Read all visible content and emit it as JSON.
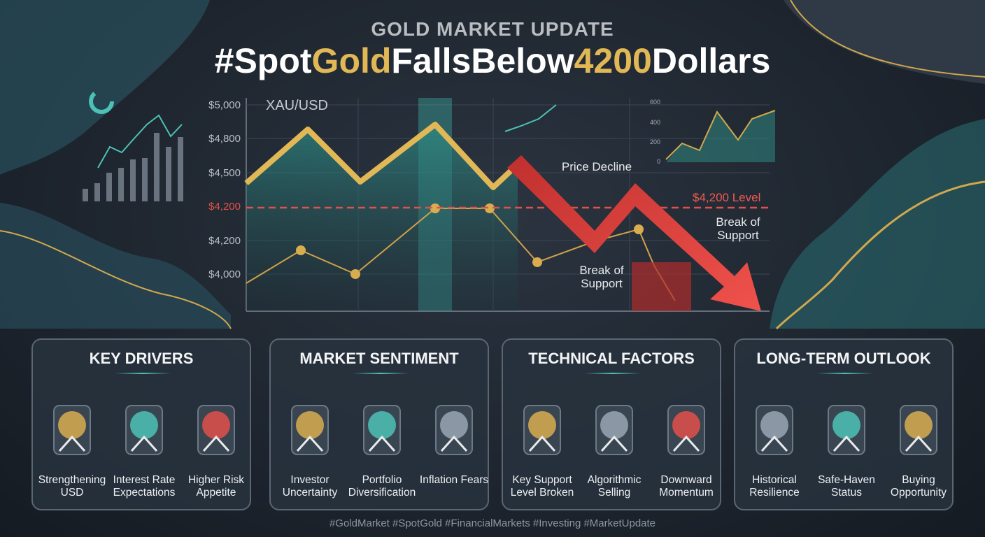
{
  "header": {
    "subtitle": "GOLD MARKET UPDATE",
    "title_parts": [
      "#Spot",
      "Gold",
      "FallsBelow",
      "4200",
      "Dollars"
    ]
  },
  "chart_panel": {
    "label": "XAU/USD",
    "axis_labels": [
      "$5,000",
      "$4,800",
      "$4,500",
      "$4,200",
      "$4,200",
      "$4,000"
    ],
    "level_label": "$4,200 Level",
    "annotations": [
      "Price Decline",
      "Break of Support",
      "Break of Support"
    ],
    "mini_axis_labels": [
      "600",
      "400",
      "200",
      "0"
    ]
  },
  "cards": [
    {
      "title": "KEY DRIVERS",
      "items": [
        "Strengthening USD",
        "Interest Rate Expectations",
        "Higher Risk Appetite"
      ]
    },
    {
      "title": "MARKET SENTIMENT",
      "items": [
        "Investor Uncertainty",
        "Portfolio Diversification",
        "Inflation Fears"
      ]
    },
    {
      "title": "TECHNICAL FACTORS",
      "items": [
        "Key Support Level Broken",
        "Algorithmic Selling",
        "Downward Momentum"
      ]
    },
    {
      "title": "LONG-TERM OUTLOOK",
      "items": [
        "Historical Resilience",
        "Safe-Haven Status",
        "Buying Opportunity"
      ]
    }
  ],
  "footer": "#GoldMarket #SpotGold #FinancialMarkets #Investing #MarketUpdate"
}
